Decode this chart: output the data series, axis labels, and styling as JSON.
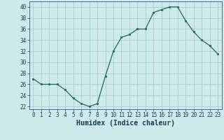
{
  "x": [
    0,
    1,
    2,
    3,
    4,
    5,
    6,
    7,
    8,
    9,
    10,
    11,
    12,
    13,
    14,
    15,
    16,
    17,
    18,
    19,
    20,
    21,
    22,
    23
  ],
  "y": [
    27,
    26,
    26,
    26,
    25,
    23.5,
    22.5,
    22,
    22.5,
    27.5,
    32,
    34.5,
    35,
    36,
    36,
    39,
    39.5,
    40,
    40,
    37.5,
    35.5,
    34,
    33,
    31.5
  ],
  "xlabel": "Humidex (Indice chaleur)",
  "xlim": [
    -0.5,
    23.5
  ],
  "ylim": [
    21.5,
    41
  ],
  "yticks": [
    22,
    24,
    26,
    28,
    30,
    32,
    34,
    36,
    38,
    40
  ],
  "xticks": [
    0,
    1,
    2,
    3,
    4,
    5,
    6,
    7,
    8,
    9,
    10,
    11,
    12,
    13,
    14,
    15,
    16,
    17,
    18,
    19,
    20,
    21,
    22,
    23
  ],
  "line_color": "#1a6b5a",
  "marker": "s",
  "marker_size": 2.0,
  "bg_color": "#ceeaea",
  "grid_color": "#aacece",
  "label_color": "#1a3a5a",
  "tick_label_fontsize": 5.5,
  "xlabel_fontsize": 7.0,
  "linewidth": 0.9
}
